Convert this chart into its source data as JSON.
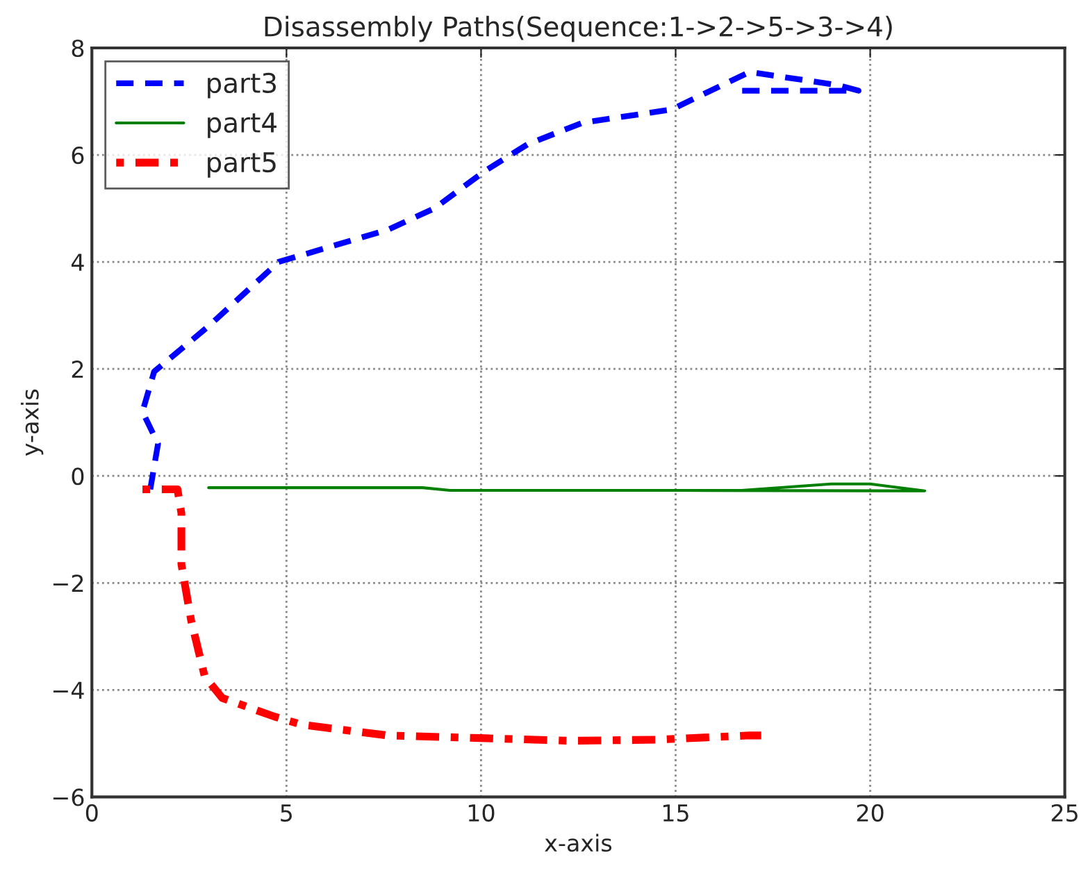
{
  "chart_data": {
    "type": "line",
    "title": "Disassembly Paths(Sequence:1->2->5->3->4)",
    "xlabel": "x-axis",
    "ylabel": "y-axis",
    "xlim": [
      0,
      25
    ],
    "ylim": [
      -6,
      8
    ],
    "xticks": [
      0,
      5,
      10,
      15,
      20,
      25
    ],
    "yticks": [
      -6,
      -4,
      -2,
      0,
      2,
      4,
      6,
      8
    ],
    "grid": true,
    "legend": "top left",
    "series": [
      {
        "name": "part3",
        "color": "#0000ff",
        "line_style": "dashed",
        "x": [
          1.5,
          1.7,
          1.3,
          1.6,
          3.0,
          4.8,
          7.6,
          8.8,
          10.1,
          11.2,
          12.6,
          14.9,
          16.9,
          19.2,
          19.7,
          16.7
        ],
        "values": [
          -0.25,
          0.6,
          1.2,
          1.95,
          2.8,
          4.0,
          4.6,
          5.0,
          5.7,
          6.2,
          6.6,
          6.85,
          7.55,
          7.3,
          7.2,
          7.2
        ]
      },
      {
        "name": "part4",
        "color": "#008000",
        "line_style": "solid",
        "x": [
          3.0,
          8.5,
          9.2,
          16.7,
          19.0,
          20.0,
          21.4,
          15.0
        ],
        "values": [
          -0.22,
          -0.22,
          -0.27,
          -0.27,
          -0.15,
          -0.15,
          -0.28,
          -0.27
        ]
      },
      {
        "name": "part5",
        "color": "#ff0000",
        "line_style": "dashdot",
        "x": [
          1.3,
          2.2,
          2.3,
          2.3,
          2.55,
          2.9,
          3.35,
          4.7,
          5.4,
          7.6,
          10.0,
          12.3,
          14.5,
          16.9,
          17.2
        ],
        "values": [
          -0.25,
          -0.25,
          -0.7,
          -1.65,
          -2.7,
          -3.75,
          -4.15,
          -4.5,
          -4.65,
          -4.85,
          -4.9,
          -4.95,
          -4.93,
          -4.85,
          -4.85
        ]
      }
    ]
  }
}
